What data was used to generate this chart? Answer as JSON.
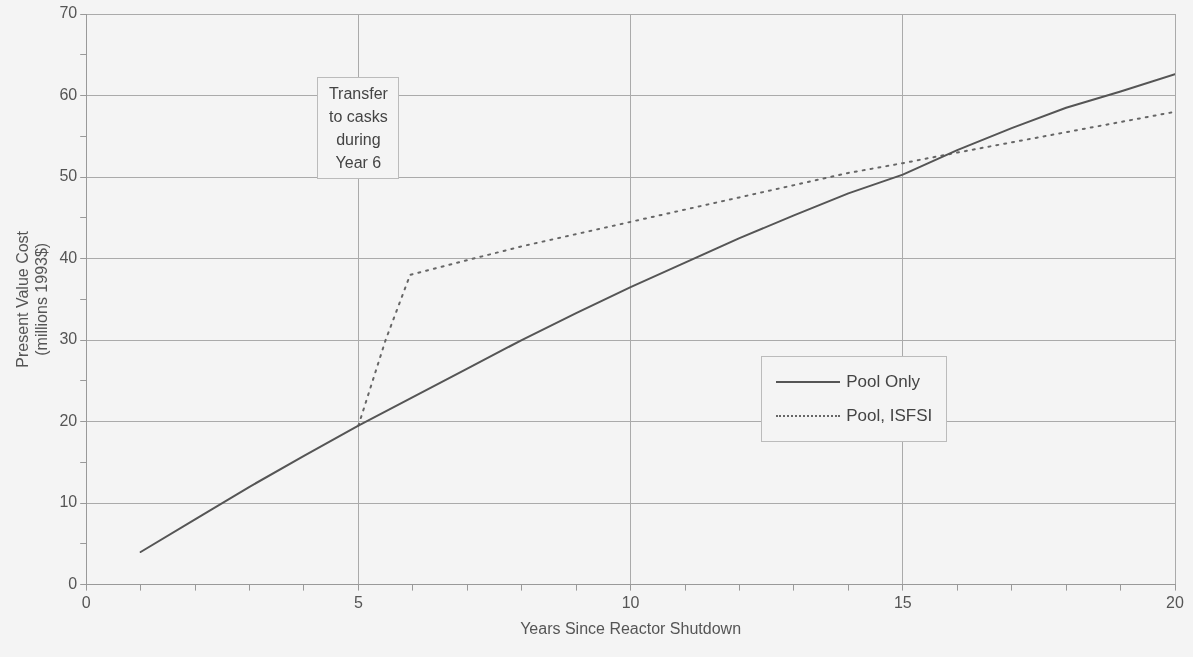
{
  "chart_data": {
    "type": "line",
    "xlabel": "Years Since Reactor Shutdown",
    "ylabel": "Present Value Cost\n(millions 1993$)",
    "xlim": [
      0,
      20
    ],
    "xticks": [
      0,
      {
        "value": 1,
        "label": null
      },
      {
        "value": 2,
        "label": null
      },
      {
        "value": 3,
        "label": null
      },
      {
        "value": 4,
        "label": null
      },
      5,
      {
        "value": 6,
        "label": null
      },
      {
        "value": 7,
        "label": null
      },
      {
        "value": 8,
        "label": null
      },
      {
        "value": 9,
        "label": null
      },
      10,
      {
        "value": 11,
        "label": null
      },
      {
        "value": 12,
        "label": null
      },
      {
        "value": 13,
        "label": null
      },
      {
        "value": 14,
        "label": null
      },
      15,
      {
        "value": 16,
        "label": null
      },
      {
        "value": 17,
        "label": null
      },
      {
        "value": 18,
        "label": null
      },
      {
        "value": 19,
        "label": null
      },
      20
    ],
    "ylim": [
      0,
      70
    ],
    "yticks": [
      0,
      {
        "value": 5,
        "label": null
      },
      10,
      {
        "value": 15,
        "label": null
      },
      20,
      {
        "value": 25,
        "label": null
      },
      30,
      {
        "value": 35,
        "label": null
      },
      40,
      {
        "value": 45,
        "label": null
      },
      50,
      {
        "value": 55,
        "label": null
      },
      60,
      {
        "value": 65,
        "label": null
      },
      70
    ],
    "grid": true,
    "legend": "right",
    "series": [
      {
        "name": "Pool Only",
        "color": "#555555",
        "line_style": "solid",
        "x": [
          1,
          2,
          3,
          4,
          5,
          6,
          7,
          8,
          9,
          10,
          11,
          12,
          13,
          14,
          15,
          16,
          17,
          18,
          19,
          20
        ],
        "values": [
          4,
          8,
          12,
          15.8,
          19.5,
          23,
          26.5,
          30,
          33.3,
          36.5,
          39.5,
          42.5,
          45.3,
          48,
          50.3,
          53.3,
          56,
          58.5,
          60.5,
          62.6
        ]
      },
      {
        "name": "Pool, ISFSI",
        "color": "#666666",
        "line_style": "dotted",
        "x": [
          5,
          5.5,
          5.95,
          7,
          8,
          10,
          12,
          14,
          15,
          16,
          18,
          20
        ],
        "values": [
          19.5,
          30,
          38,
          39.8,
          41.5,
          44.5,
          47.5,
          50.5,
          51.7,
          53,
          55.5,
          58
        ]
      }
    ],
    "annotations": [
      "Transfer to casks during Year 6"
    ]
  }
}
